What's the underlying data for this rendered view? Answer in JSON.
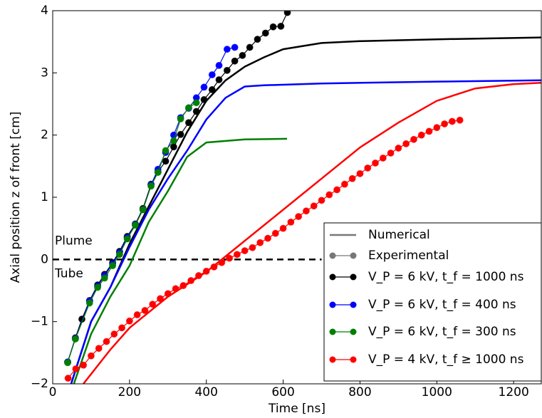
{
  "chart_data": {
    "type": "line",
    "x_label": "Time [ns]",
    "y_label": "Axial position z of front [cm]",
    "annotations": [
      "Plume",
      "Tube"
    ],
    "legend_styles": [
      "Numerical",
      "Experimental"
    ],
    "legend_corner": "lower right",
    "reference_line": 0,
    "xlim": [
      0,
      1272
    ],
    "ylim": [
      -2,
      4
    ],
    "xticks": [
      0,
      200,
      400,
      600,
      800,
      1000,
      1200
    ],
    "yticks": [
      {
        "value": -2,
        "label": "−2"
      },
      {
        "value": -1,
        "label": "−1"
      },
      0,
      1,
      2,
      3,
      4
    ],
    "series": [
      {
        "name": "V_P = 6 kV, t_f = 1000 ns",
        "color": "#000000",
        "x": [
          39,
          59,
          76,
          96,
          117,
          135,
          156,
          174,
          194,
          215,
          235,
          256,
          274,
          294,
          315,
          333,
          354,
          374,
          394,
          415,
          433,
          454,
          474,
          494,
          513,
          533,
          554,
          574,
          594,
          611
        ],
        "values": [
          -1.65,
          -1.26,
          -0.96,
          -0.66,
          -0.41,
          -0.24,
          -0.05,
          0.13,
          0.37,
          0.57,
          0.82,
          1.21,
          1.41,
          1.58,
          1.81,
          2.01,
          2.2,
          2.38,
          2.57,
          2.73,
          2.89,
          3.04,
          3.19,
          3.28,
          3.41,
          3.54,
          3.64,
          3.74,
          3.75,
          3.97
        ],
        "numerical_x": [
          48,
          100,
          150,
          200,
          250,
          300,
          350,
          400,
          450,
          500,
          550,
          600,
          700,
          800,
          1000,
          1272
        ],
        "numerical_values": [
          -2,
          -1.0,
          -0.45,
          0.25,
          0.85,
          1.45,
          2.05,
          2.55,
          2.88,
          3.1,
          3.25,
          3.38,
          3.48,
          3.51,
          3.54,
          3.57
        ]
      },
      {
        "name": "V_P = 6 kV, t_f = 400 ns",
        "color": "#0000ff",
        "x": [
          39,
          59,
          96,
          117,
          135,
          156,
          174,
          194,
          215,
          235,
          256,
          274,
          294,
          315,
          333,
          354,
          374,
          394,
          415,
          433,
          454,
          474
        ],
        "values": [
          -1.65,
          -1.27,
          -0.67,
          -0.43,
          -0.26,
          -0.07,
          0.11,
          0.35,
          0.56,
          0.8,
          1.2,
          1.45,
          1.72,
          2.0,
          2.28,
          2.43,
          2.6,
          2.77,
          2.97,
          3.12,
          3.38,
          3.41
        ],
        "numerical_x": [
          48,
          100,
          150,
          200,
          250,
          300,
          350,
          400,
          450,
          500,
          550,
          700,
          1000,
          1272
        ],
        "numerical_values": [
          -2,
          -1.0,
          -0.45,
          0.2,
          0.8,
          1.3,
          1.75,
          2.25,
          2.6,
          2.78,
          2.8,
          2.83,
          2.86,
          2.88
        ]
      },
      {
        "name": "V_P = 6 kV, t_f = 300 ns",
        "color": "#007f00",
        "x": [
          39,
          59,
          96,
          117,
          135,
          156,
          174,
          194,
          215,
          235,
          256,
          274,
          294,
          315,
          333,
          354,
          374
        ],
        "values": [
          -1.66,
          -1.28,
          -0.7,
          -0.45,
          -0.3,
          -0.1,
          0.08,
          0.33,
          0.55,
          0.8,
          1.18,
          1.4,
          1.75,
          1.91,
          2.26,
          2.44,
          2.52
        ],
        "numerical_x": [
          55,
          100,
          150,
          200,
          250,
          300,
          350,
          400,
          500,
          610
        ],
        "numerical_values": [
          -2,
          -1.2,
          -0.6,
          -0.1,
          0.6,
          1.1,
          1.65,
          1.88,
          1.93,
          1.94
        ]
      },
      {
        "name": "V_P = 4 kV, t_f ≥ 1000 ns",
        "color": "#ff0000",
        "x": [
          40,
          60,
          80,
          100,
          120,
          140,
          160,
          180,
          200,
          220,
          240,
          260,
          280,
          300,
          320,
          340,
          360,
          380,
          400,
          420,
          440,
          460,
          480,
          500,
          520,
          540,
          560,
          580,
          600,
          620,
          640,
          660,
          680,
          700,
          720,
          740,
          760,
          780,
          800,
          820,
          840,
          860,
          880,
          900,
          920,
          940,
          960,
          980,
          1000,
          1020,
          1040,
          1060
        ],
        "values": [
          -1.91,
          -1.76,
          -1.7,
          -1.55,
          -1.43,
          -1.32,
          -1.2,
          -1.1,
          -0.99,
          -0.89,
          -0.82,
          -0.72,
          -0.63,
          -0.55,
          -0.47,
          -0.42,
          -0.34,
          -0.26,
          -0.19,
          -0.12,
          -0.05,
          0.02,
          0.08,
          0.14,
          0.19,
          0.27,
          0.34,
          0.42,
          0.5,
          0.6,
          0.69,
          0.78,
          0.86,
          0.95,
          1.04,
          1.12,
          1.21,
          1.3,
          1.38,
          1.47,
          1.55,
          1.63,
          1.71,
          1.79,
          1.86,
          1.93,
          2.0,
          2.06,
          2.12,
          2.18,
          2.22,
          2.24
        ],
        "numerical_x": [
          80,
          150,
          200,
          300,
          400,
          500,
          600,
          700,
          800,
          900,
          1000,
          1100,
          1200,
          1272
        ],
        "numerical_values": [
          -2,
          -1.45,
          -1.1,
          -0.6,
          -0.2,
          0.3,
          0.8,
          1.3,
          1.8,
          2.2,
          2.55,
          2.75,
          2.82,
          2.84
        ]
      }
    ]
  }
}
